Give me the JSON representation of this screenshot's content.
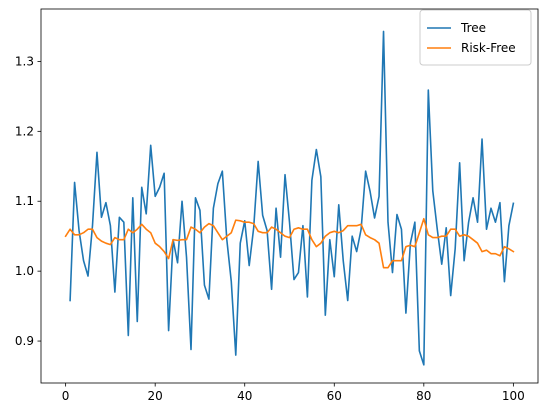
{
  "chart_data": {
    "type": "line",
    "title": "",
    "xlabel": "",
    "ylabel": "",
    "xlim": [
      -5.5,
      105.5
    ],
    "ylim": [
      0.84,
      1.375
    ],
    "x_ticks": [
      0,
      20,
      40,
      60,
      80,
      100
    ],
    "y_ticks": [
      0.9,
      1.0,
      1.1,
      1.2,
      1.3
    ],
    "x_tick_labels": [
      "0",
      "20",
      "40",
      "60",
      "80",
      "100"
    ],
    "y_tick_labels": [
      "0.9",
      "1.0",
      "1.1",
      "1.2",
      "1.3"
    ],
    "grid": false,
    "legend_position": "upper right",
    "series": [
      {
        "name": "Tree",
        "color": "#1f77b4",
        "x": [
          1,
          2,
          3,
          4,
          5,
          6,
          7,
          8,
          9,
          10,
          11,
          12,
          13,
          14,
          15,
          16,
          17,
          18,
          19,
          20,
          21,
          22,
          23,
          24,
          25,
          26,
          27,
          28,
          29,
          30,
          31,
          32,
          33,
          34,
          35,
          36,
          37,
          38,
          39,
          40,
          41,
          42,
          43,
          44,
          45,
          46,
          47,
          48,
          49,
          50,
          51,
          52,
          53,
          54,
          55,
          56,
          57,
          58,
          59,
          60,
          61,
          62,
          63,
          64,
          65,
          66,
          67,
          68,
          69,
          70,
          71,
          72,
          73,
          74,
          75,
          76,
          77,
          78,
          79,
          80,
          81,
          82,
          83,
          84,
          85,
          86,
          87,
          88,
          89,
          90,
          91,
          92,
          93,
          94,
          95,
          96,
          97,
          98,
          99,
          100
        ],
        "values": [
          0.958,
          1.127,
          1.058,
          1.015,
          0.993,
          1.065,
          1.17,
          1.077,
          1.098,
          1.065,
          0.97,
          1.077,
          1.07,
          0.908,
          1.105,
          0.928,
          1.12,
          1.082,
          1.18,
          1.107,
          1.12,
          1.14,
          0.915,
          1.045,
          1.012,
          1.1,
          1.02,
          0.888,
          1.105,
          1.087,
          0.98,
          0.96,
          1.09,
          1.125,
          1.143,
          1.045,
          0.985,
          0.88,
          1.04,
          1.072,
          1.008,
          1.062,
          1.157,
          1.08,
          1.058,
          0.974,
          1.09,
          1.02,
          1.138,
          1.07,
          0.988,
          0.998,
          1.065,
          0.963,
          1.13,
          1.174,
          1.135,
          0.937,
          1.045,
          0.992,
          1.095,
          1.015,
          0.958,
          1.05,
          1.028,
          1.06,
          1.143,
          1.114,
          1.076,
          1.107,
          1.343,
          1.07,
          0.998,
          1.081,
          1.06,
          0.94,
          1.04,
          1.07,
          0.886,
          0.866,
          1.259,
          1.115,
          1.06,
          1.01,
          1.062,
          0.965,
          1.032,
          1.155,
          1.015,
          1.07,
          1.105,
          1.07,
          1.189,
          1.06,
          1.09,
          1.07,
          1.098,
          0.985,
          1.065,
          1.097
        ]
      },
      {
        "name": "Risk-Free",
        "color": "#ff7f0e",
        "x": [
          0,
          1,
          2,
          3,
          4,
          5,
          6,
          7,
          8,
          9,
          10,
          11,
          12,
          13,
          14,
          15,
          16,
          17,
          18,
          19,
          20,
          21,
          22,
          23,
          24,
          25,
          26,
          27,
          28,
          29,
          30,
          31,
          32,
          33,
          34,
          35,
          36,
          37,
          38,
          39,
          40,
          41,
          42,
          43,
          44,
          45,
          46,
          47,
          48,
          49,
          50,
          51,
          52,
          53,
          54,
          55,
          56,
          57,
          58,
          59,
          60,
          61,
          62,
          63,
          64,
          65,
          66,
          67,
          68,
          69,
          70,
          71,
          72,
          73,
          74,
          75,
          76,
          77,
          78,
          79,
          80,
          81,
          82,
          83,
          84,
          85,
          86,
          87,
          88,
          89,
          90,
          91,
          92,
          93,
          94,
          95,
          96,
          97,
          98,
          99,
          100
        ],
        "values": [
          1.05,
          1.06,
          1.052,
          1.052,
          1.055,
          1.06,
          1.06,
          1.048,
          1.043,
          1.04,
          1.038,
          1.048,
          1.045,
          1.045,
          1.06,
          1.055,
          1.06,
          1.067,
          1.06,
          1.055,
          1.04,
          1.035,
          1.028,
          1.018,
          1.045,
          1.044,
          1.045,
          1.045,
          1.063,
          1.06,
          1.055,
          1.063,
          1.068,
          1.065,
          1.055,
          1.045,
          1.05,
          1.055,
          1.073,
          1.072,
          1.07,
          1.07,
          1.068,
          1.057,
          1.055,
          1.055,
          1.063,
          1.06,
          1.055,
          1.05,
          1.048,
          1.06,
          1.062,
          1.06,
          1.06,
          1.045,
          1.035,
          1.04,
          1.05,
          1.055,
          1.057,
          1.055,
          1.058,
          1.065,
          1.065,
          1.065,
          1.067,
          1.052,
          1.048,
          1.045,
          1.04,
          1.005,
          1.005,
          1.015,
          1.015,
          1.015,
          1.035,
          1.037,
          1.035,
          1.055,
          1.075,
          1.052,
          1.048,
          1.048,
          1.05,
          1.05,
          1.06,
          1.06,
          1.05,
          1.052,
          1.05,
          1.045,
          1.04,
          1.028,
          1.03,
          1.025,
          1.025,
          1.022,
          1.035,
          1.032,
          1.028
        ]
      }
    ]
  }
}
